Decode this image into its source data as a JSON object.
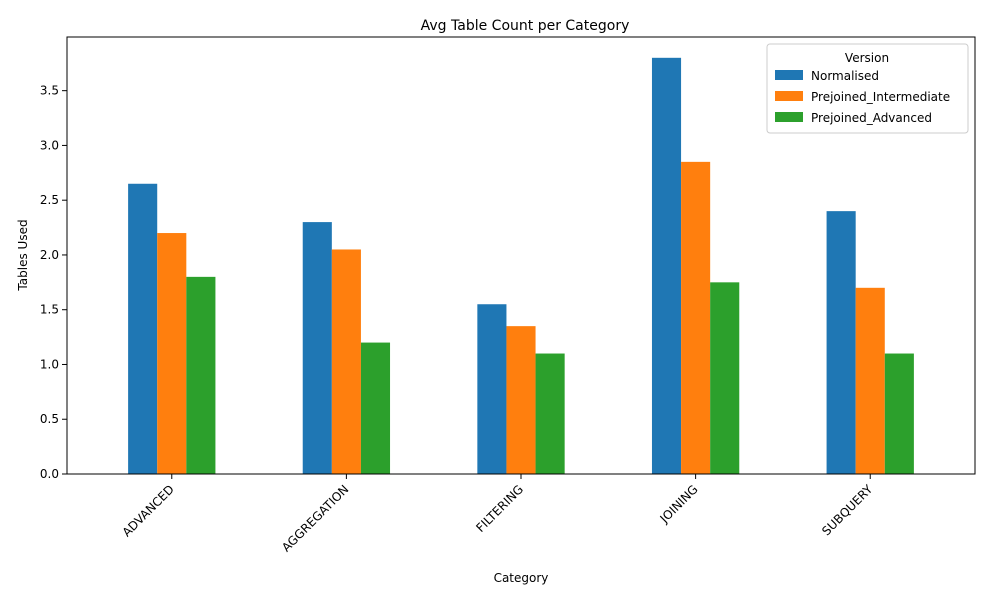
{
  "chart_data": {
    "type": "bar",
    "title": "Avg Table Count per Category",
    "xlabel": "Category",
    "ylabel": "Tables Used",
    "categories": [
      "ADVANCED",
      "AGGREGATION",
      "FILTERING",
      "JOINING",
      "SUBQUERY"
    ],
    "series": [
      {
        "name": "Normalised",
        "color": "#1f77b4",
        "values": [
          2.65,
          2.3,
          1.55,
          3.8,
          2.4
        ]
      },
      {
        "name": "Prejoined_Intermediate",
        "color": "#ff7f0e",
        "values": [
          2.2,
          2.05,
          1.35,
          2.85,
          1.7
        ]
      },
      {
        "name": "Prejoined_Advanced",
        "color": "#2ca02c",
        "values": [
          1.8,
          1.2,
          1.1,
          1.75,
          1.1
        ]
      }
    ],
    "ylim": [
      0,
      3.99
    ],
    "yticks": [
      0.0,
      0.5,
      1.0,
      1.5,
      2.0,
      2.5,
      3.0,
      3.5
    ],
    "ytick_labels": [
      "0.0",
      "0.5",
      "1.0",
      "1.5",
      "2.0",
      "2.5",
      "3.0",
      "3.5"
    ],
    "legend": {
      "title": "Version",
      "placement": "top-right"
    },
    "grid": false
  }
}
